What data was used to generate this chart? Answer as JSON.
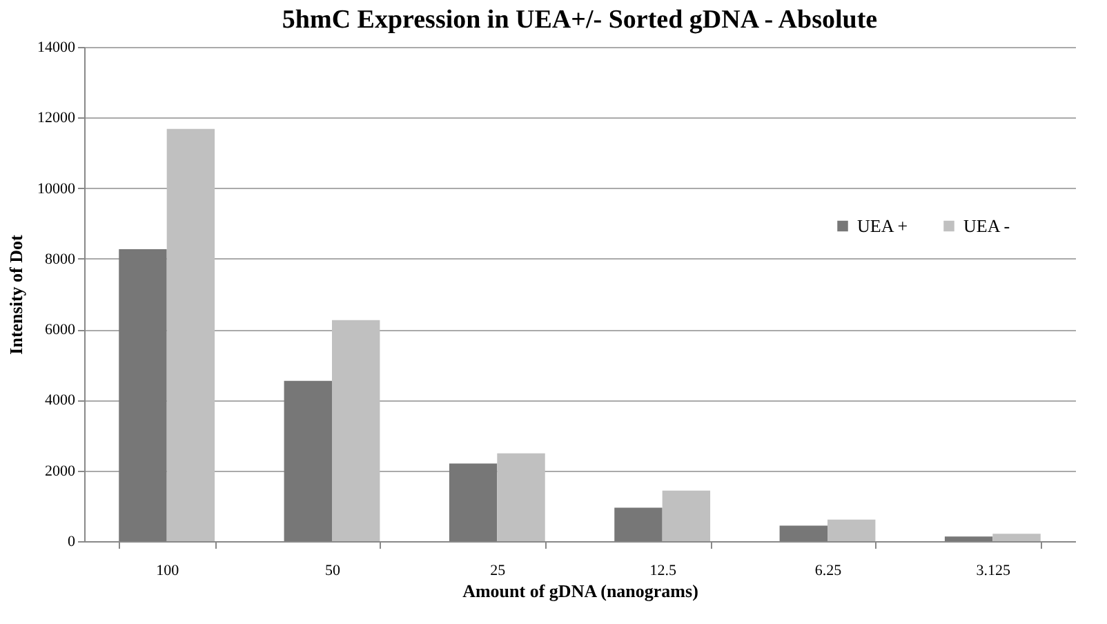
{
  "chart_data": {
    "type": "bar",
    "title": "5hmC Expression in UEA+/- Sorted gDNA - Absolute",
    "xlabel": "Amount of gDNA (nanograms)",
    "ylabel": "Intensity of Dot",
    "categories": [
      "100",
      "50",
      "25",
      "12.5",
      "6.25",
      "3.125"
    ],
    "series": [
      {
        "name": "UEA +",
        "color": "#777777",
        "values": [
          8270,
          4540,
          2200,
          950,
          440,
          130
        ]
      },
      {
        "name": "UEA -",
        "color": "#c0c0c0",
        "values": [
          11680,
          6260,
          2490,
          1430,
          610,
          210
        ]
      }
    ],
    "ylim": [
      0,
      14000
    ],
    "yticks": [
      0,
      2000,
      4000,
      6000,
      8000,
      10000,
      12000,
      14000
    ],
    "grid": "y",
    "legend": "right"
  }
}
